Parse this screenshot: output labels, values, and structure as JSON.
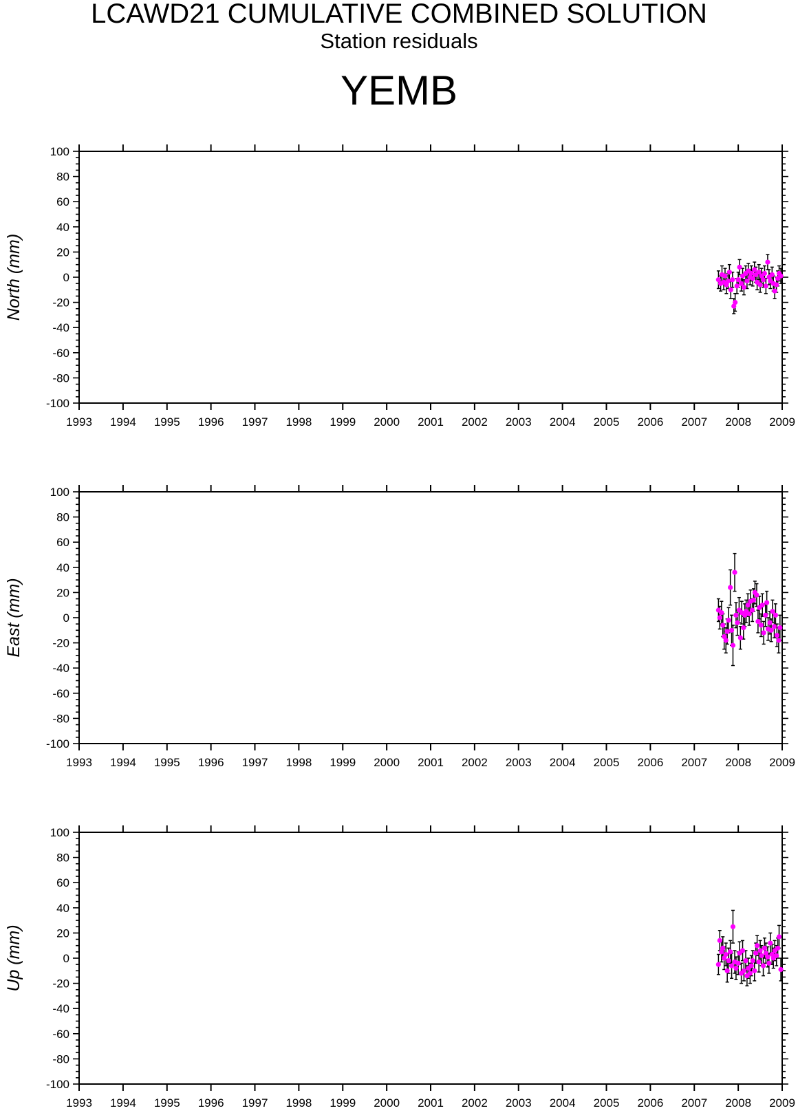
{
  "header": {
    "title": "LCAWD21 CUMULATIVE COMBINED SOLUTION",
    "subtitle": "Station residuals",
    "station": "YEMB"
  },
  "colors": {
    "point": "#ff00ff",
    "errorbar": "#000000",
    "axis": "#000000"
  },
  "chart_data": [
    {
      "type": "scatter",
      "ylabel": "North (mm)",
      "xlim": [
        1993,
        2009
      ],
      "ylim": [
        -100,
        100
      ],
      "x_ticks": [
        "1993",
        "1994",
        "1995",
        "1996",
        "1997",
        "1998",
        "1999",
        "2000",
        "2001",
        "2002",
        "2003",
        "2004",
        "2005",
        "2006",
        "2007",
        "2008",
        "2009"
      ],
      "y_ticks": [
        "100",
        "80",
        "60",
        "40",
        "20",
        "0",
        "-20",
        "-40",
        "-60",
        "-80",
        "-100"
      ],
      "grid": false,
      "points": [
        [
          2007.55,
          -2,
          7
        ],
        [
          2007.6,
          -5,
          6
        ],
        [
          2007.63,
          2,
          7
        ],
        [
          2007.67,
          -4,
          6
        ],
        [
          2007.7,
          1,
          6
        ],
        [
          2007.73,
          -6,
          7
        ],
        [
          2007.77,
          -3,
          6
        ],
        [
          2007.8,
          4,
          6
        ],
        [
          2007.83,
          -10,
          7
        ],
        [
          2007.87,
          -2,
          6
        ],
        [
          2007.9,
          -23,
          6
        ],
        [
          2007.93,
          -20,
          7
        ],
        [
          2007.97,
          -7,
          6
        ],
        [
          2008.0,
          -2,
          6
        ],
        [
          2008.03,
          8,
          6
        ],
        [
          2008.07,
          -5,
          6
        ],
        [
          2008.1,
          1,
          6
        ],
        [
          2008.13,
          -8,
          6
        ],
        [
          2008.17,
          3,
          6
        ],
        [
          2008.2,
          -3,
          6
        ],
        [
          2008.23,
          5,
          6
        ],
        [
          2008.27,
          0,
          6
        ],
        [
          2008.3,
          3,
          6
        ],
        [
          2008.33,
          -1,
          6
        ],
        [
          2008.37,
          6,
          6
        ],
        [
          2008.4,
          2,
          6
        ],
        [
          2008.43,
          -4,
          6
        ],
        [
          2008.47,
          4,
          6
        ],
        [
          2008.5,
          -6,
          6
        ],
        [
          2008.53,
          1,
          6
        ],
        [
          2008.57,
          -2,
          6
        ],
        [
          2008.6,
          3,
          6
        ],
        [
          2008.63,
          -7,
          6
        ],
        [
          2008.67,
          12,
          6
        ],
        [
          2008.7,
          0,
          6
        ],
        [
          2008.73,
          -3,
          6
        ],
        [
          2008.77,
          2,
          6
        ],
        [
          2008.8,
          -5,
          6
        ],
        [
          2008.83,
          -11,
          6
        ],
        [
          2008.87,
          -6,
          6
        ],
        [
          2008.9,
          -1,
          6
        ],
        [
          2008.93,
          3,
          6
        ],
        [
          2008.97,
          1,
          6
        ]
      ]
    },
    {
      "type": "scatter",
      "ylabel": "East (mm)",
      "xlim": [
        1993,
        2009
      ],
      "ylim": [
        -100,
        100
      ],
      "x_ticks": [
        "1993",
        "1994",
        "1995",
        "1996",
        "1997",
        "1998",
        "1999",
        "2000",
        "2001",
        "2002",
        "2003",
        "2004",
        "2005",
        "2006",
        "2007",
        "2008",
        "2009"
      ],
      "y_ticks": [
        "100",
        "80",
        "60",
        "40",
        "20",
        "0",
        "-20",
        "-40",
        "-60",
        "-80",
        "-100"
      ],
      "grid": false,
      "points": [
        [
          2007.55,
          6,
          9
        ],
        [
          2007.58,
          0,
          9
        ],
        [
          2007.62,
          4,
          9
        ],
        [
          2007.65,
          -6,
          9
        ],
        [
          2007.68,
          -15,
          10
        ],
        [
          2007.72,
          -18,
          10
        ],
        [
          2007.75,
          -11,
          10
        ],
        [
          2007.78,
          -2,
          10
        ],
        [
          2007.82,
          24,
          14
        ],
        [
          2007.85,
          -10,
          12
        ],
        [
          2007.88,
          -22,
          16
        ],
        [
          2007.92,
          36,
          15
        ],
        [
          2007.95,
          2,
          10
        ],
        [
          2007.98,
          -4,
          10
        ],
        [
          2008.02,
          6,
          10
        ],
        [
          2008.05,
          -16,
          9
        ],
        [
          2008.08,
          4,
          9
        ],
        [
          2008.12,
          -8,
          9
        ],
        [
          2008.15,
          2,
          9
        ],
        [
          2008.18,
          5,
          9
        ],
        [
          2008.22,
          10,
          9
        ],
        [
          2008.25,
          3,
          9
        ],
        [
          2008.28,
          13,
          9
        ],
        [
          2008.32,
          6,
          9
        ],
        [
          2008.35,
          14,
          9
        ],
        [
          2008.38,
          20,
          9
        ],
        [
          2008.42,
          18,
          9
        ],
        [
          2008.45,
          -3,
          9
        ],
        [
          2008.48,
          8,
          9
        ],
        [
          2008.52,
          -6,
          9
        ],
        [
          2008.55,
          10,
          9
        ],
        [
          2008.58,
          -12,
          9
        ],
        [
          2008.62,
          2,
          9
        ],
        [
          2008.65,
          12,
          9
        ],
        [
          2008.68,
          -9,
          9
        ],
        [
          2008.72,
          -4,
          9
        ],
        [
          2008.75,
          -10,
          9
        ],
        [
          2008.78,
          5,
          9
        ],
        [
          2008.82,
          -7,
          9
        ],
        [
          2008.85,
          2,
          9
        ],
        [
          2008.88,
          -14,
          9
        ],
        [
          2008.92,
          -18,
          10
        ],
        [
          2008.95,
          -8,
          10
        ]
      ]
    },
    {
      "type": "scatter",
      "ylabel": "Up (mm)",
      "xlim": [
        1993,
        2009
      ],
      "ylim": [
        -100,
        100
      ],
      "x_ticks": [
        "1993",
        "1994",
        "1995",
        "1996",
        "1997",
        "1998",
        "1999",
        "2000",
        "2001",
        "2002",
        "2003",
        "2004",
        "2005",
        "2006",
        "2007",
        "2008",
        "2009"
      ],
      "y_ticks": [
        "100",
        "80",
        "60",
        "40",
        "20",
        "0",
        "-20",
        "-40",
        "-60",
        "-80",
        "-100"
      ],
      "grid": false,
      "points": [
        [
          2007.55,
          -5,
          8
        ],
        [
          2007.58,
          14,
          8
        ],
        [
          2007.62,
          5,
          8
        ],
        [
          2007.65,
          8,
          9
        ],
        [
          2007.68,
          0,
          9
        ],
        [
          2007.72,
          3,
          9
        ],
        [
          2007.75,
          -10,
          9
        ],
        [
          2007.78,
          -2,
          10
        ],
        [
          2007.82,
          5,
          9
        ],
        [
          2007.85,
          -6,
          10
        ],
        [
          2007.88,
          25,
          13
        ],
        [
          2007.92,
          -3,
          9
        ],
        [
          2007.95,
          -8,
          9
        ],
        [
          2008.0,
          -4,
          9
        ],
        [
          2008.03,
          4,
          9
        ],
        [
          2008.07,
          -12,
          8
        ],
        [
          2008.1,
          6,
          8
        ],
        [
          2008.13,
          -10,
          8
        ],
        [
          2008.17,
          -2,
          8
        ],
        [
          2008.2,
          -14,
          8
        ],
        [
          2008.23,
          -8,
          8
        ],
        [
          2008.27,
          -12,
          8
        ],
        [
          2008.3,
          -6,
          8
        ],
        [
          2008.33,
          -2,
          8
        ],
        [
          2008.37,
          -10,
          8
        ],
        [
          2008.4,
          4,
          8
        ],
        [
          2008.43,
          10,
          8
        ],
        [
          2008.47,
          -3,
          8
        ],
        [
          2008.5,
          6,
          8
        ],
        [
          2008.53,
          2,
          8
        ],
        [
          2008.57,
          -6,
          8
        ],
        [
          2008.6,
          8,
          8
        ],
        [
          2008.63,
          4,
          8
        ],
        [
          2008.67,
          1,
          8
        ],
        [
          2008.7,
          -4,
          8
        ],
        [
          2008.73,
          12,
          8
        ],
        [
          2008.77,
          3,
          8
        ],
        [
          2008.8,
          0,
          8
        ],
        [
          2008.83,
          6,
          8
        ],
        [
          2008.87,
          2,
          8
        ],
        [
          2008.9,
          8,
          8
        ],
        [
          2008.93,
          17,
          9
        ],
        [
          2008.97,
          -9,
          9
        ]
      ]
    }
  ]
}
